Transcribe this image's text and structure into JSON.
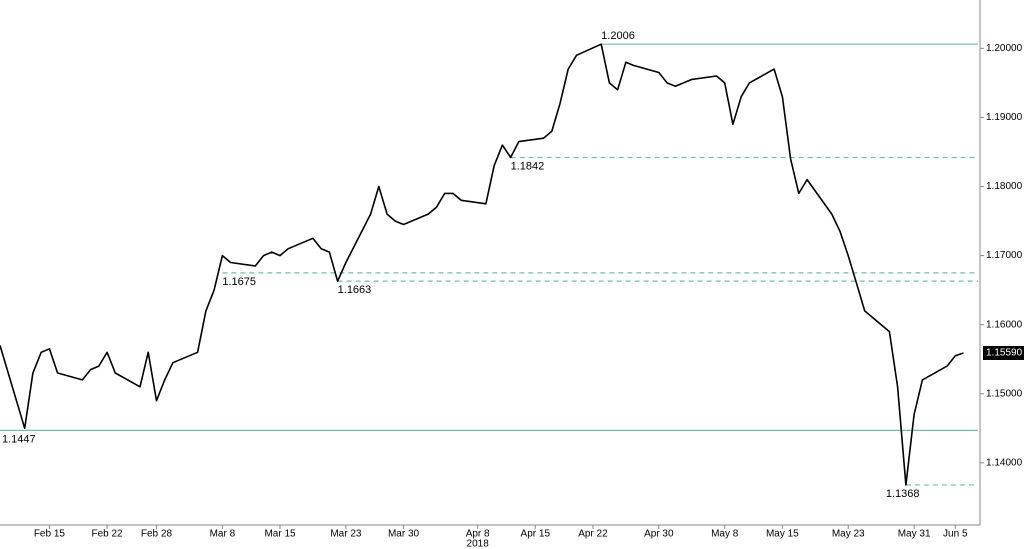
{
  "chart_data": {
    "type": "line",
    "x": [
      "2018-02-09",
      "2018-02-12",
      "2018-02-13",
      "2018-02-14",
      "2018-02-15",
      "2018-02-16",
      "2018-02-19",
      "2018-02-20",
      "2018-02-21",
      "2018-02-22",
      "2018-02-23",
      "2018-02-26",
      "2018-02-27",
      "2018-02-28",
      "2018-03-01",
      "2018-03-02",
      "2018-03-05",
      "2018-03-06",
      "2018-03-07",
      "2018-03-08",
      "2018-03-09",
      "2018-03-12",
      "2018-03-13",
      "2018-03-14",
      "2018-03-15",
      "2018-03-16",
      "2018-03-19",
      "2018-03-20",
      "2018-03-21",
      "2018-03-22",
      "2018-03-23",
      "2018-03-26",
      "2018-03-27",
      "2018-03-28",
      "2018-03-29",
      "2018-03-30",
      "2018-04-02",
      "2018-04-03",
      "2018-04-04",
      "2018-04-05",
      "2018-04-06",
      "2018-04-09",
      "2018-04-10",
      "2018-04-11",
      "2018-04-12",
      "2018-04-13",
      "2018-04-16",
      "2018-04-17",
      "2018-04-18",
      "2018-04-19",
      "2018-04-20",
      "2018-04-23",
      "2018-04-24",
      "2018-04-25",
      "2018-04-26",
      "2018-04-27",
      "2018-04-30",
      "2018-05-01",
      "2018-05-02",
      "2018-05-03",
      "2018-05-04",
      "2018-05-07",
      "2018-05-08",
      "2018-05-09",
      "2018-05-10",
      "2018-05-11",
      "2018-05-14",
      "2018-05-15",
      "2018-05-16",
      "2018-05-17",
      "2018-05-18",
      "2018-05-21",
      "2018-05-22",
      "2018-05-23",
      "2018-05-24",
      "2018-05-25",
      "2018-05-28",
      "2018-05-29",
      "2018-05-30",
      "2018-05-31",
      "2018-06-01",
      "2018-06-04",
      "2018-06-05",
      "2018-06-06"
    ],
    "series": [
      {
        "color": "#000000",
        "values": [
          1.157,
          1.145,
          1.153,
          1.156,
          1.1565,
          1.153,
          1.152,
          1.1535,
          1.154,
          1.156,
          1.153,
          1.151,
          1.156,
          1.149,
          1.152,
          1.1545,
          1.156,
          1.162,
          1.165,
          1.17,
          1.169,
          1.1685,
          1.17,
          1.1705,
          1.17,
          1.171,
          1.1725,
          1.171,
          1.1705,
          1.1663,
          1.169,
          1.176,
          1.18,
          1.176,
          1.175,
          1.1745,
          1.176,
          1.177,
          1.179,
          1.179,
          1.178,
          1.1775,
          1.183,
          1.186,
          1.1842,
          1.1865,
          1.187,
          1.188,
          1.192,
          1.197,
          1.199,
          1.2006,
          1.195,
          1.194,
          1.198,
          1.1975,
          1.1965,
          1.195,
          1.1945,
          1.195,
          1.1955,
          1.196,
          1.195,
          1.189,
          1.193,
          1.195,
          1.197,
          1.193,
          1.184,
          1.179,
          1.181,
          1.176,
          1.1735,
          1.17,
          1.166,
          1.162,
          1.159,
          1.151,
          1.1368,
          1.147,
          1.152,
          1.154,
          1.1555,
          1.1559
        ]
      }
    ],
    "xlim": [
      "2018-02-09",
      "2018-06-08"
    ],
    "xticks": [
      {
        "value": "2018-02-15",
        "label": "Feb 15"
      },
      {
        "value": "2018-02-22",
        "label": "Feb 22"
      },
      {
        "value": "2018-02-28",
        "label": "Feb 28"
      },
      {
        "value": "2018-03-08",
        "label": "Mar 8"
      },
      {
        "value": "2018-03-15",
        "label": "Mar 15"
      },
      {
        "value": "2018-03-23",
        "label": "Mar 23"
      },
      {
        "value": "2018-03-30",
        "label": "Mar 30"
      },
      {
        "value": "2018-04-08",
        "label": "Apr 8"
      },
      {
        "value": "2018-04-15",
        "label": "Apr 15"
      },
      {
        "value": "2018-04-22",
        "label": "Apr 22"
      },
      {
        "value": "2018-04-30",
        "label": "Apr 30"
      },
      {
        "value": "2018-05-08",
        "label": "May 8"
      },
      {
        "value": "2018-05-15",
        "label": "May 15"
      },
      {
        "value": "2018-05-23",
        "label": "May 23"
      },
      {
        "value": "2018-05-31",
        "label": "May 31"
      },
      {
        "value": "2018-06-05",
        "label": "Jun 5"
      }
    ],
    "x_year_label": {
      "value": "2018-04-08",
      "label": "2018"
    },
    "ylim": [
      1.131,
      1.207
    ],
    "yticks": [
      {
        "value": 1.14,
        "label": "1.14000"
      },
      {
        "value": 1.15,
        "label": "1.15000"
      },
      {
        "value": 1.16,
        "label": "1.16000"
      },
      {
        "value": 1.17,
        "label": "1.17000"
      },
      {
        "value": 1.18,
        "label": "1.18000"
      },
      {
        "value": 1.19,
        "label": "1.19000"
      },
      {
        "value": 1.2,
        "label": "1.20000"
      }
    ],
    "levels": [
      {
        "value": 1.2006,
        "label": "1.2006",
        "style": "solid",
        "from": "2018-04-23"
      },
      {
        "value": 1.1842,
        "label": "1.1842",
        "style": "dashed",
        "from": "2018-04-12"
      },
      {
        "value": 1.1675,
        "label": "1.1675",
        "style": "dashed",
        "from": "2018-03-08"
      },
      {
        "value": 1.1663,
        "label": "1.1663",
        "style": "dashed",
        "from": "2018-03-22"
      },
      {
        "value": 1.1447,
        "label": "1.1447",
        "style": "solid",
        "from": "2018-02-09"
      },
      {
        "value": 1.1368,
        "label": "1.1368",
        "style": "dashed",
        "from": "2018-05-30"
      }
    ],
    "level_color": "#6fbfae",
    "last_price": {
      "value": 1.1559,
      "label": "1.15590"
    }
  }
}
